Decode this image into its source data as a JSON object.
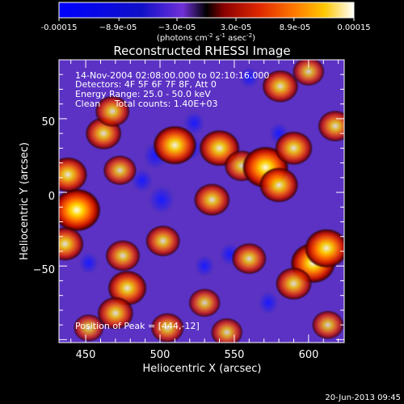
{
  "colorbar": {
    "ticks": [
      "-0.00015",
      "−8.9e-05",
      "−3.0e-05",
      "3.0e-05",
      "8.9e-05",
      "0.00015"
    ],
    "unit_parts": [
      "(photons cm",
      "-2",
      " s",
      "-1",
      " asec",
      "-2",
      ")"
    ],
    "range": [
      -0.00015,
      0.00015
    ]
  },
  "chart_data": {
    "type": "heatmap",
    "title": "Reconstructed RHESSI Image",
    "xlabel": "Heliocentric X (arcsec)",
    "ylabel": "Heliocentric Y (arcsec)",
    "xlim": [
      432,
      624
    ],
    "ylim": [
      -102,
      90
    ],
    "x_ticks": [
      450,
      500,
      550,
      600
    ],
    "y_ticks": [
      -50,
      0,
      50
    ],
    "x_tick_labels": [
      "450",
      "500",
      "550",
      "600"
    ],
    "y_tick_labels": [
      "−50",
      "0",
      "50"
    ],
    "annotations": [
      "14-Nov-2004 02:08:00.000 to 02:10:16.000",
      "Detectors: 4F 5F 6F 7F 8F, Att 0",
      "Energy Range: 25.0 - 50.0 keV",
      "Clean     Total counts: 1.40E+03"
    ],
    "peak_label": "Position of Peak = [444,-12]",
    "peak": [
      444,
      -12
    ],
    "sources": [
      {
        "x": 444,
        "y": -12,
        "level": 1.0
      },
      {
        "x": 436,
        "y": -35,
        "level": 0.65
      },
      {
        "x": 438,
        "y": 12,
        "level": 0.7
      },
      {
        "x": 462,
        "y": 40,
        "level": 0.6
      },
      {
        "x": 468,
        "y": 55,
        "level": 0.55
      },
      {
        "x": 473,
        "y": 15,
        "level": 0.5
      },
      {
        "x": 475,
        "y": -43,
        "level": 0.55
      },
      {
        "x": 478,
        "y": -65,
        "level": 0.7
      },
      {
        "x": 470,
        "y": -82,
        "level": 0.6
      },
      {
        "x": 452,
        "y": -92,
        "level": 0.4
      },
      {
        "x": 502,
        "y": -33,
        "level": 0.55
      },
      {
        "x": 510,
        "y": 32,
        "level": 0.85
      },
      {
        "x": 505,
        "y": -92,
        "level": 0.5
      },
      {
        "x": 530,
        "y": -75,
        "level": 0.45
      },
      {
        "x": 535,
        "y": -5,
        "level": 0.6
      },
      {
        "x": 540,
        "y": 30,
        "level": 0.75
      },
      {
        "x": 555,
        "y": 18,
        "level": 0.55
      },
      {
        "x": 560,
        "y": -45,
        "level": 0.55
      },
      {
        "x": 571,
        "y": 17,
        "level": 0.95
      },
      {
        "x": 580,
        "y": 5,
        "level": 0.7
      },
      {
        "x": 581,
        "y": 72,
        "level": 0.6
      },
      {
        "x": 590,
        "y": 30,
        "level": 0.65
      },
      {
        "x": 600,
        "y": 82,
        "level": 0.45
      },
      {
        "x": 603,
        "y": -48,
        "level": 0.9
      },
      {
        "x": 612,
        "y": -38,
        "level": 0.85
      },
      {
        "x": 590,
        "y": -62,
        "level": 0.6
      },
      {
        "x": 618,
        "y": 45,
        "level": 0.55
      },
      {
        "x": 613,
        "y": -90,
        "level": 0.45
      },
      {
        "x": 545,
        "y": -95,
        "level": 0.45
      }
    ],
    "minima": [
      {
        "x": 497,
        "y": 25,
        "level": 0.7
      },
      {
        "x": 501,
        "y": -5,
        "level": 0.8
      },
      {
        "x": 521,
        "y": 30,
        "level": 0.55
      },
      {
        "x": 523,
        "y": 47,
        "level": 0.5
      },
      {
        "x": 488,
        "y": 8,
        "level": 0.5
      },
      {
        "x": 547,
        "y": -42,
        "level": 0.45
      },
      {
        "x": 573,
        "y": -75,
        "level": 0.45
      },
      {
        "x": 530,
        "y": -50,
        "level": 0.4
      },
      {
        "x": 452,
        "y": -48,
        "level": 0.4
      },
      {
        "x": 580,
        "y": 40,
        "level": 0.4
      },
      {
        "x": 560,
        "y": 78,
        "level": 0.4
      }
    ]
  },
  "timestamp": "20-Jun-2013 09:45"
}
